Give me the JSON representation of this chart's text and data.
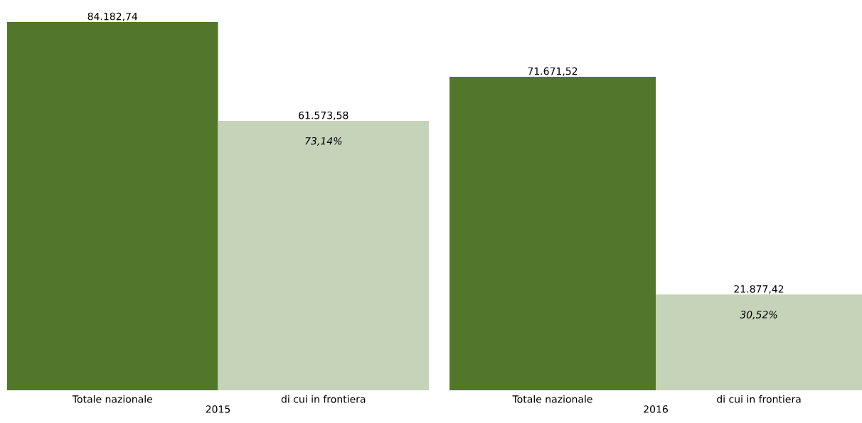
{
  "chart_data": [
    {
      "type": "bar",
      "categories": [
        "Totale nazionale",
        "di cui in frontiera"
      ],
      "values": [
        84182.74,
        61573.58
      ],
      "colors": [
        "#52772a",
        "#c5d3b9"
      ],
      "value_labels": [
        "84.182,74",
        "61.573,58"
      ],
      "xlabel": "2015",
      "annotations": [
        "73,14%"
      ]
    },
    {
      "type": "bar",
      "categories": [
        "Totale nazionale",
        "di cui in frontiera"
      ],
      "values": [
        71671.52,
        21877.42
      ],
      "colors": [
        "#52772a",
        "#c5d3b9"
      ],
      "value_labels": [
        "71.671,52",
        "21.877,42"
      ],
      "xlabel": "2016",
      "annotations": [
        "30,52%"
      ]
    }
  ]
}
